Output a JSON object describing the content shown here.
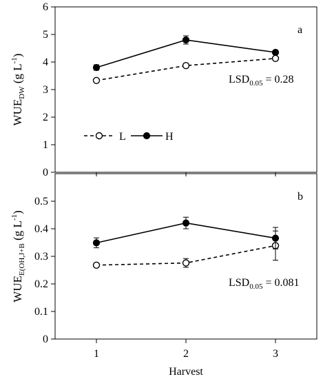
{
  "chart_data": [
    {
      "type": "line",
      "panel_label": "a",
      "ylabel": "WUE",
      "ylabel_sub": "DW",
      "ylabel_unit": "(g L",
      "ylabel_sup": "-1",
      "ylabel_close": ")",
      "ylim": [
        0,
        6
      ],
      "yticks": [
        "0",
        "1",
        "2",
        "3",
        "4",
        "5",
        "6"
      ],
      "x": [
        1,
        2,
        3
      ],
      "series": [
        {
          "name": "L",
          "values": [
            3.33,
            3.87,
            4.13
          ],
          "errors": [
            0.06,
            0.06,
            0.07
          ],
          "style": "dashed",
          "marker": "open-circle"
        },
        {
          "name": "H",
          "values": [
            3.8,
            4.8,
            4.35
          ],
          "errors": [
            0.1,
            0.15,
            0.07
          ],
          "style": "solid",
          "marker": "filled-circle"
        }
      ],
      "lsd": {
        "prefix": "LSD",
        "sub": "0.05",
        "value": "= 0.28"
      },
      "legend": "inside-lower-left",
      "grid": false
    },
    {
      "type": "line",
      "panel_label": "b",
      "ylabel": "WUE",
      "ylabel_sub": "E(OH,J+B",
      "ylabel_unit": "(g L",
      "ylabel_sup": "-1",
      "ylabel_close": ")",
      "ylim": [
        0,
        0.6
      ],
      "yticks": [
        "0",
        "0.1",
        "0.2",
        "0.3",
        "0.4",
        "0.5"
      ],
      "x": [
        1,
        2,
        3
      ],
      "xticks": [
        "1",
        "2",
        "3"
      ],
      "xlabel": "Harvest",
      "series": [
        {
          "name": "L",
          "values": [
            0.268,
            0.276,
            0.339
          ],
          "errors": [
            0.005,
            0.016,
            0.053
          ],
          "style": "dashed",
          "marker": "open-circle"
        },
        {
          "name": "H",
          "values": [
            0.349,
            0.421,
            0.366
          ],
          "errors": [
            0.018,
            0.021,
            0.039
          ],
          "style": "solid",
          "marker": "filled-circle"
        }
      ],
      "lsd": {
        "prefix": "LSD",
        "sub": "0.05",
        "value": "= 0.081"
      },
      "grid": false
    }
  ]
}
